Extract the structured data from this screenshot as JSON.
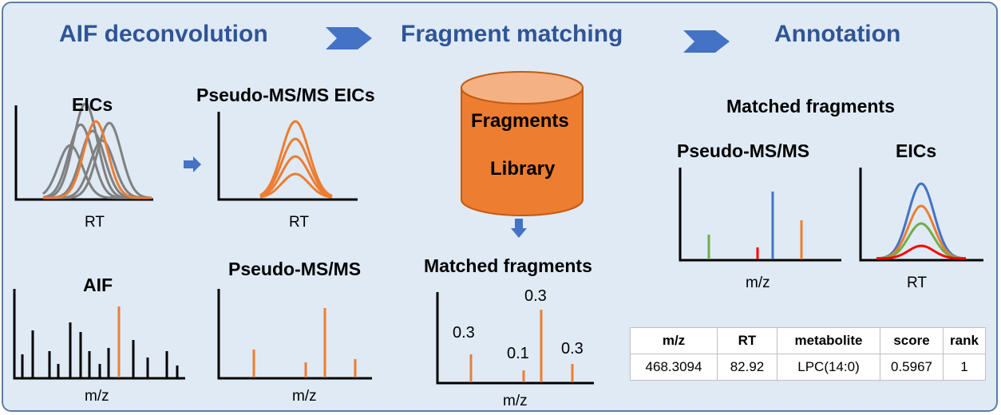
{
  "stages": [
    "AIF deconvolution",
    "Fragment matching",
    "Annotation"
  ],
  "panels": {
    "eics_title": "EICs",
    "pseudo_eics_title": "Pseudo-MS/MS EICs",
    "aif_title": "AIF",
    "pseudo_msms_title": "Pseudo-MS/MS",
    "matched_title": "Matched fragments",
    "annot_title": "Matched fragments",
    "annot_pseudo_title": "Pseudo-MS/MS",
    "annot_eics_title": "EICs"
  },
  "axis_labels": {
    "rt": "RT",
    "mz": "m/z"
  },
  "library": {
    "line1": "Fragments",
    "line2": "Library"
  },
  "matched_scores": [
    "0.3",
    "0.1",
    "0.3",
    "0.3"
  ],
  "results_table": {
    "headers": [
      "m/z",
      "RT",
      "metabolite",
      "score",
      "rank"
    ],
    "row": [
      "468.3094",
      "82.92",
      "LPC(14:0)",
      "0.5967",
      "1"
    ]
  },
  "colors": {
    "title_blue": "#2f5597",
    "arrow_blue": "#4472c4",
    "orange": "#ed7d31",
    "gray": "#808080",
    "green": "#70ad47",
    "red": "#ff0000",
    "cylinder_body": "#ed7d31",
    "cylinder_top": "#f4b183",
    "cylinder_edge": "#c55a11"
  }
}
